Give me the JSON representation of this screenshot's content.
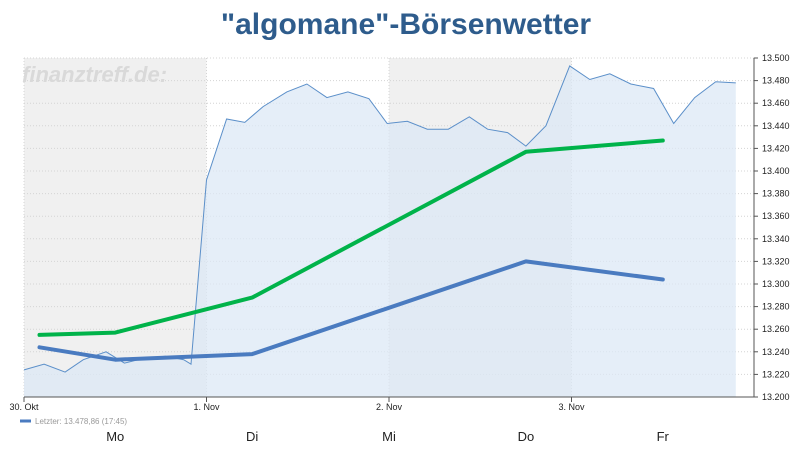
{
  "chart_data": {
    "type": "line",
    "title": "\"algomane\"-Börsenwetter",
    "watermark": "finanztreff.de:",
    "ylim": [
      13200,
      13500
    ],
    "y_ticks": [
      "13.500",
      "13.480",
      "13.460",
      "13.440",
      "13.420",
      "13.400",
      "13.380",
      "13.360",
      "13.340",
      "13.320",
      "13.300",
      "13.280",
      "13.260",
      "13.240",
      "13.220",
      "13.200"
    ],
    "y_tick_values": [
      13500,
      13480,
      13460,
      13440,
      13420,
      13400,
      13380,
      13360,
      13340,
      13320,
      13300,
      13280,
      13260,
      13240,
      13220,
      13200
    ],
    "x_ticks": [
      {
        "label": "30. Okt",
        "t": 0
      },
      {
        "label": "1. Nov",
        "t": 2
      },
      {
        "label": "2. Nov",
        "t": 4
      },
      {
        "label": "3. Nov",
        "t": 6
      }
    ],
    "xlim": [
      0,
      8
    ],
    "day_labels": [
      {
        "label": "Mo",
        "t": 1
      },
      {
        "label": "Di",
        "t": 2.5
      },
      {
        "label": "Mi",
        "t": 4
      },
      {
        "label": "Do",
        "t": 5.5
      },
      {
        "label": "Fr",
        "t": 7
      }
    ],
    "legend": "Letzter: 13.478,86 (17:45)",
    "colors": {
      "price_line": "#5b8fc9",
      "price_fill": "#dce8f5",
      "band_shade": "#f0f0f0",
      "green": "#00b34a",
      "blue": "#4a7bc0",
      "axis": "#555555",
      "grid": "#d4d4d4"
    },
    "series": [
      {
        "name": "Letzter",
        "style": "area",
        "points": [
          [
            0,
            13224
          ],
          [
            0.22,
            13229
          ],
          [
            0.45,
            13222
          ],
          [
            0.65,
            13233
          ],
          [
            0.9,
            13240
          ],
          [
            1.1,
            13230
          ],
          [
            1.3,
            13234
          ],
          [
            1.55,
            13236
          ],
          [
            1.75,
            13233
          ],
          [
            1.83,
            13229
          ],
          [
            2.0,
            13392
          ],
          [
            2.22,
            13446
          ],
          [
            2.42,
            13443
          ],
          [
            2.62,
            13457
          ],
          [
            2.88,
            13470
          ],
          [
            3.1,
            13477
          ],
          [
            3.32,
            13465
          ],
          [
            3.55,
            13470
          ],
          [
            3.78,
            13464
          ],
          [
            3.98,
            13442
          ],
          [
            4.2,
            13444
          ],
          [
            4.42,
            13437
          ],
          [
            4.65,
            13437
          ],
          [
            4.88,
            13448
          ],
          [
            5.08,
            13437
          ],
          [
            5.3,
            13434
          ],
          [
            5.5,
            13422
          ],
          [
            5.72,
            13440
          ],
          [
            5.98,
            13493
          ],
          [
            6.2,
            13481
          ],
          [
            6.42,
            13486
          ],
          [
            6.65,
            13477
          ],
          [
            6.9,
            13473
          ],
          [
            7.12,
            13442
          ],
          [
            7.35,
            13465
          ],
          [
            7.58,
            13479
          ],
          [
            7.8,
            13478
          ]
        ]
      },
      {
        "name": "",
        "style": "line",
        "color": "#00b34a",
        "points": [
          [
            0.17,
            13255
          ],
          [
            1.0,
            13257
          ],
          [
            2.5,
            13288
          ],
          [
            5.5,
            13417
          ],
          [
            7.0,
            13427
          ]
        ]
      },
      {
        "name": "",
        "style": "line",
        "color": "#4a7bc0",
        "points": [
          [
            0.17,
            13244
          ],
          [
            1.0,
            13233
          ],
          [
            2.5,
            13238
          ],
          [
            5.5,
            13320
          ],
          [
            7.0,
            13304
          ]
        ]
      }
    ],
    "shaded_bands": [
      [
        0,
        2
      ],
      [
        4,
        6
      ]
    ],
    "grid": true
  }
}
